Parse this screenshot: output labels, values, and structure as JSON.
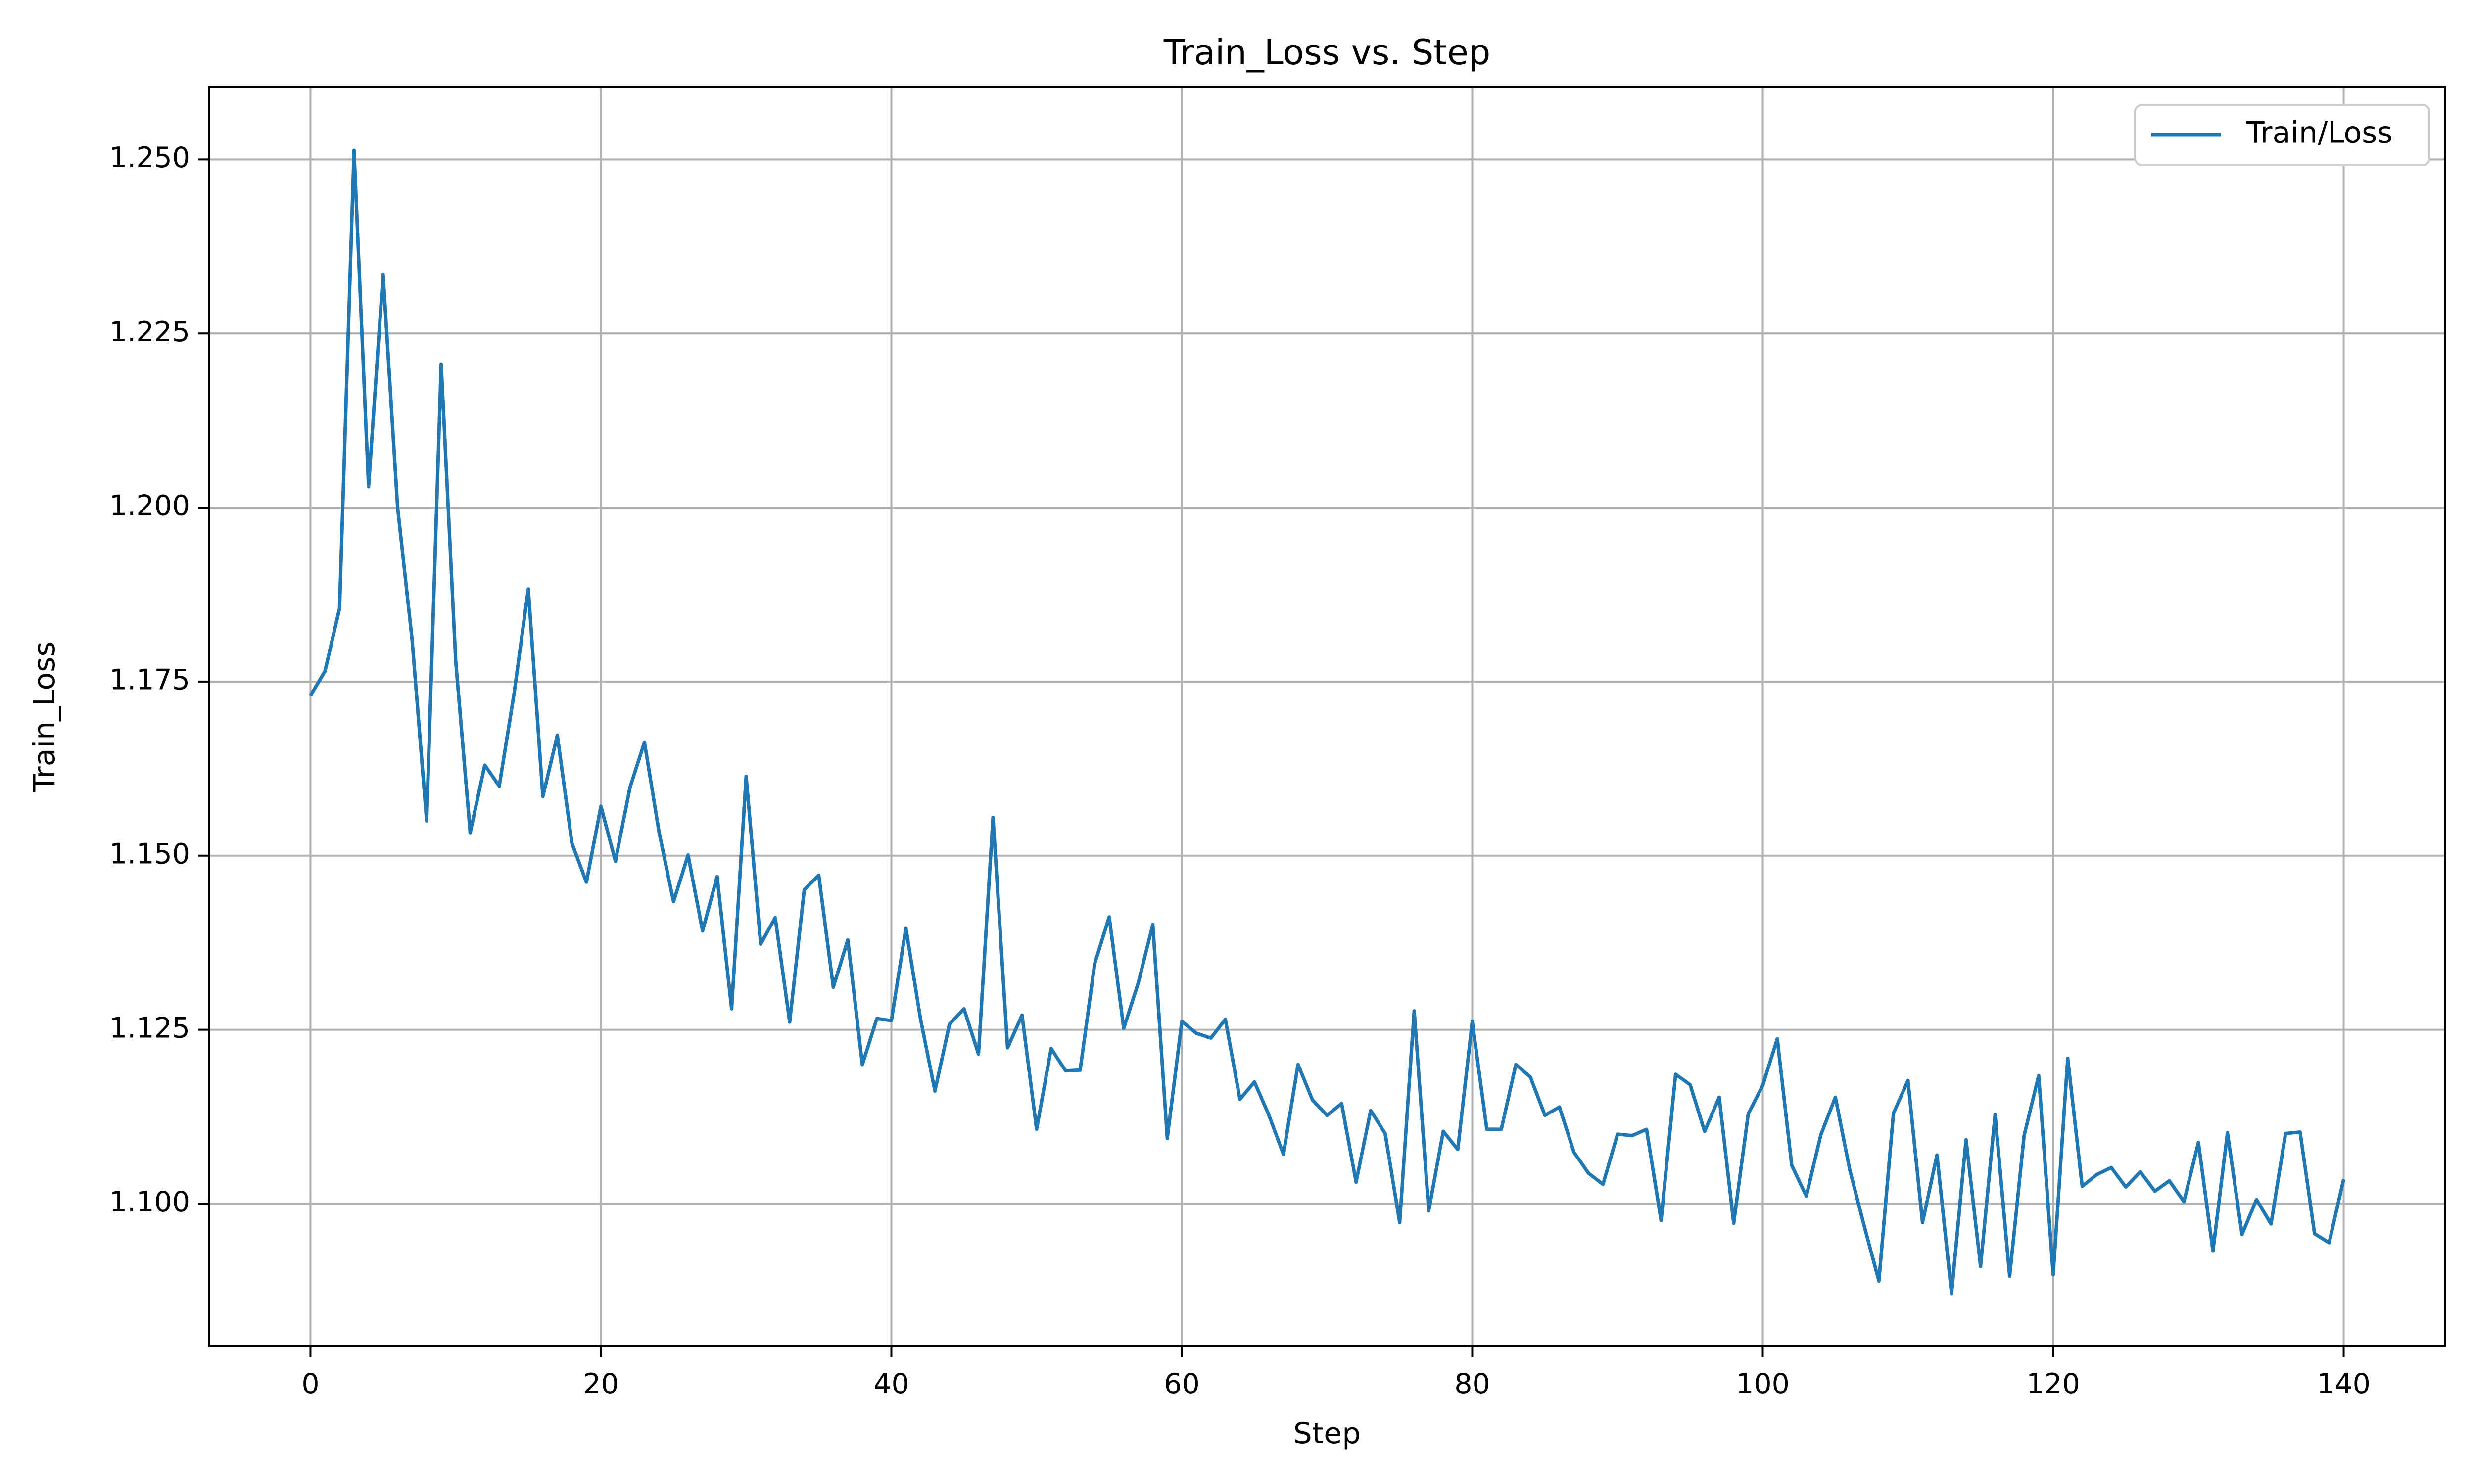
{
  "chart_data": {
    "type": "line",
    "title": "Train_Loss vs. Step",
    "xlabel": "Step",
    "ylabel": "Train_Loss",
    "xlim": [
      -7,
      147
    ],
    "ylim": [
      1.0795,
      1.2604
    ],
    "xticks": [
      0,
      20,
      40,
      60,
      80,
      100,
      120,
      140
    ],
    "xtick_labels": [
      "0",
      "20",
      "40",
      "60",
      "80",
      "100",
      "120",
      "140"
    ],
    "yticks": [
      1.1,
      1.125,
      1.15,
      1.175,
      1.2,
      1.225,
      1.25
    ],
    "ytick_labels": [
      "1.100",
      "1.125",
      "1.150",
      "1.175",
      "1.200",
      "1.225",
      "1.250"
    ],
    "grid": true,
    "legend_position": "top-right",
    "series": [
      {
        "name": "Train/Loss",
        "color": "#1f77b4",
        "x": [
          0,
          1,
          2,
          3,
          4,
          5,
          6,
          7,
          8,
          9,
          10,
          11,
          12,
          13,
          14,
          15,
          16,
          17,
          18,
          19,
          20,
          21,
          22,
          23,
          24,
          25,
          26,
          27,
          28,
          29,
          30,
          31,
          32,
          33,
          34,
          35,
          36,
          37,
          38,
          39,
          40,
          41,
          42,
          43,
          44,
          45,
          46,
          47,
          48,
          49,
          50,
          51,
          52,
          53,
          54,
          55,
          56,
          57,
          58,
          59,
          60,
          61,
          62,
          63,
          64,
          65,
          66,
          67,
          68,
          69,
          70,
          71,
          72,
          73,
          74,
          75,
          76,
          77,
          78,
          79,
          80,
          81,
          82,
          83,
          84,
          85,
          86,
          87,
          88,
          89,
          90,
          91,
          92,
          93,
          94,
          95,
          96,
          97,
          98,
          99,
          100,
          101,
          102,
          103,
          104,
          105,
          106,
          107,
          108,
          109,
          110,
          111,
          112,
          113,
          114,
          115,
          116,
          117,
          118,
          119,
          120,
          121,
          122,
          123,
          124,
          125,
          126,
          127,
          128,
          129,
          130,
          131,
          132,
          133,
          134,
          135,
          136,
          137,
          138,
          139,
          140
        ],
        "y": [
          1.173,
          1.1765,
          1.1855,
          1.2513,
          1.203,
          1.2335,
          1.2,
          1.181,
          1.155,
          1.2206,
          1.178,
          1.1533,
          1.163,
          1.16,
          1.173,
          1.1883,
          1.1585,
          1.1673,
          1.1518,
          1.1462,
          1.1571,
          1.1492,
          1.1598,
          1.1663,
          1.1534,
          1.1434,
          1.1501,
          1.1392,
          1.147,
          1.128,
          1.1614,
          1.1373,
          1.1411,
          1.1261,
          1.1451,
          1.1472,
          1.1311,
          1.1379,
          1.12,
          1.1266,
          1.1263,
          1.1396,
          1.1266,
          1.1162,
          1.1258,
          1.128,
          1.1215,
          1.1555,
          1.1224,
          1.1271,
          1.1107,
          1.1223,
          1.1191,
          1.1192,
          1.1345,
          1.1412,
          1.1252,
          1.1317,
          1.1401,
          1.1094,
          1.1262,
          1.1245,
          1.1238,
          1.1265,
          1.115,
          1.1175,
          1.1127,
          1.1071,
          1.12,
          1.1149,
          1.1127,
          1.1144,
          1.1031,
          1.1134,
          1.1101,
          1.0973,
          1.1277,
          1.099,
          1.1104,
          1.1078,
          1.1262,
          1.1107,
          1.1107,
          1.12,
          1.1182,
          1.1127,
          1.1139,
          1.1074,
          1.1044,
          1.1028,
          1.11,
          1.1098,
          1.1107,
          1.0976,
          1.1186,
          1.1171,
          1.1104,
          1.1153,
          1.0972,
          1.1129,
          1.117,
          1.1237,
          1.1055,
          1.1011,
          1.1099,
          1.1153,
          1.1048,
          1.0967,
          1.0889,
          1.113,
          1.1177,
          1.0973,
          1.107,
          1.0871,
          1.1092,
          1.091,
          1.1128,
          1.0896,
          1.1098,
          1.1184,
          1.0898,
          1.1209,
          1.1025,
          1.1042,
          1.1052,
          1.1024,
          1.1046,
          1.1018,
          1.1033,
          1.1003,
          1.1088,
          1.0932,
          1.1102,
          1.0956,
          1.1006,
          1.0971,
          1.1101,
          1.1103,
          1.0957,
          1.0944,
          1.1035
        ]
      }
    ]
  }
}
